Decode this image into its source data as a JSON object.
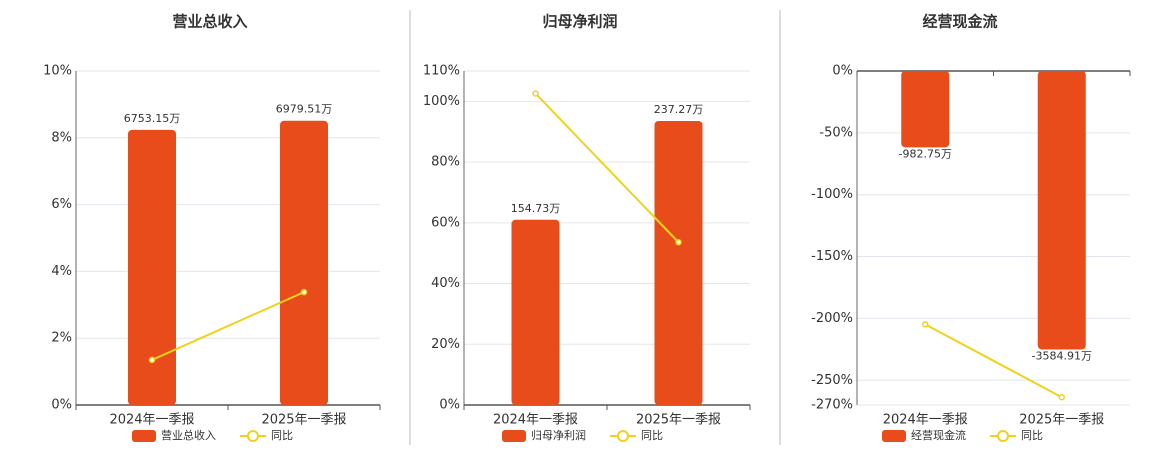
{
  "chart_data": [
    {
      "type": "bar",
      "title": "营业总收入",
      "categories": [
        "2024年一季报",
        "2025年一季报"
      ],
      "series": [
        {
          "name": "营业总收入",
          "type": "bar",
          "axis": "y2",
          "color": "#e84c1a",
          "values": [
            6753.15,
            6979.51
          ],
          "value_labels": [
            "6753.15万",
            "6979.51万"
          ]
        },
        {
          "name": "同比",
          "type": "line",
          "color": "#f0d21c",
          "values": [
            1.35,
            3.38
          ]
        }
      ],
      "ylim": [
        0,
        10
      ],
      "yticks": [
        {
          "value": 0,
          "label": "0%"
        },
        {
          "value": 2,
          "label": "2%"
        },
        {
          "value": 4,
          "label": "4%"
        },
        {
          "value": 6,
          "label": "6%"
        },
        {
          "value": 8,
          "label": "8%"
        },
        {
          "value": 10,
          "label": "10%"
        }
      ],
      "y2lim": [
        0,
        8200
      ],
      "grid": true
    },
    {
      "type": "bar",
      "title": "归母净利润",
      "categories": [
        "2024年一季报",
        "2025年一季报"
      ],
      "series": [
        {
          "name": "归母净利润",
          "type": "bar",
          "axis": "y2",
          "color": "#e84c1a",
          "values": [
            154.73,
            237.27
          ],
          "value_labels": [
            "154.73万",
            "237.27万"
          ]
        },
        {
          "name": "同比",
          "type": "line",
          "color": "#f0d21c",
          "values": [
            102.6,
            53.6
          ]
        }
      ],
      "ylim": [
        0,
        110
      ],
      "yticks": [
        {
          "value": 0,
          "label": "0%"
        },
        {
          "value": 20,
          "label": "20%"
        },
        {
          "value": 40,
          "label": "40%"
        },
        {
          "value": 60,
          "label": "60%"
        },
        {
          "value": 80,
          "label": "80%"
        },
        {
          "value": 100,
          "label": "100%"
        },
        {
          "value": 110,
          "label": "110%"
        }
      ],
      "y2lim": [
        0,
        279
      ],
      "grid": true
    },
    {
      "type": "bar",
      "title": "经营现金流",
      "categories": [
        "2024年一季报",
        "2025年一季报"
      ],
      "series": [
        {
          "name": "经营现金流",
          "type": "bar",
          "axis": "y2",
          "color": "#e84c1a",
          "values": [
            -982.75,
            -3584.91
          ],
          "value_labels": [
            "-982.75万",
            "-3584.91万"
          ]
        },
        {
          "name": "同比",
          "type": "line",
          "color": "#f0d21c",
          "values": [
            -204.8,
            -263.7
          ]
        }
      ],
      "ylim": [
        -270,
        0
      ],
      "yticks": [
        {
          "value": 0,
          "label": "0%"
        },
        {
          "value": -50,
          "label": "-50%"
        },
        {
          "value": -100,
          "label": "-100%"
        },
        {
          "value": -150,
          "label": "-150%"
        },
        {
          "value": -200,
          "label": "-200%"
        },
        {
          "value": -250,
          "label": "-250%"
        },
        {
          "value": -270,
          "label": "-270%"
        }
      ],
      "y2lim": [
        -4300,
        0
      ],
      "grid": true
    }
  ]
}
